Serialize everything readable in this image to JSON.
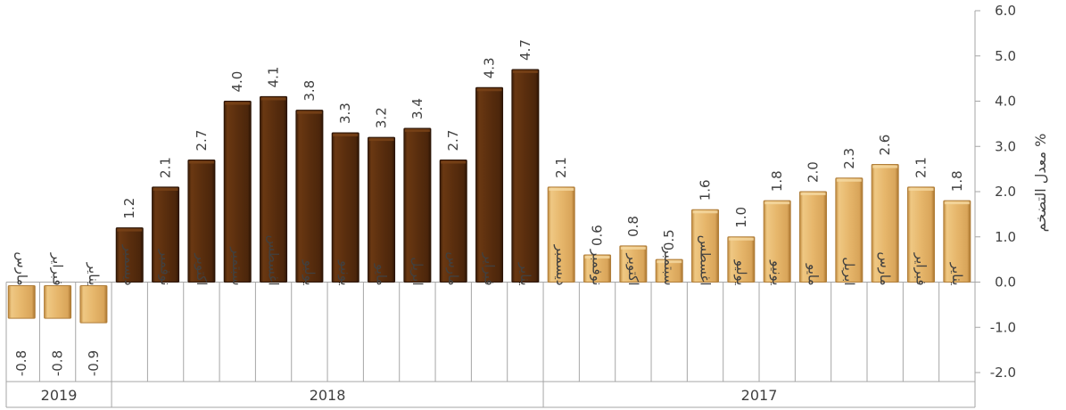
{
  "chart_data": {
    "type": "bar",
    "ylabel": "معدل التضخم %",
    "ylim": [
      -2.0,
      6.0
    ],
    "yticks": [
      "6.0",
      "5.0",
      "4.0",
      "3.0",
      "2.0",
      "1.0",
      "0.0",
      "-1.0",
      "-2.0"
    ],
    "y_axis_side": "right",
    "x_direction": "right-to-left",
    "grid": false,
    "groups": [
      {
        "year": "2017",
        "color": "#E3B46A",
        "categories": [
          "يناير",
          "فبراير",
          "مارس",
          "ابريل",
          "مايو",
          "يونيو",
          "يوليو",
          "اغسطس",
          "سبتمبر",
          "اكتوبر",
          "نوفمبر",
          "ديسمبر"
        ],
        "values": [
          1.8,
          2.1,
          2.6,
          2.3,
          2.0,
          1.8,
          1.0,
          1.6,
          0.5,
          0.8,
          0.6,
          2.1
        ],
        "labels": [
          "1.8",
          "2.1",
          "2.6",
          "2.3",
          "2.0",
          "1.8",
          "1.0",
          "1.6",
          "0.5",
          "0.8",
          "0.6",
          "2.1"
        ]
      },
      {
        "year": "2018",
        "color": "#5A2E0E",
        "categories": [
          "يناير",
          "فبراير",
          "مارس",
          "ابريل",
          "مايو",
          "يونيو",
          "يوليو",
          "اغسطس",
          "سبتمبر",
          "اكتوبر",
          "نوفمبر",
          "ديسمبر"
        ],
        "values": [
          4.7,
          4.3,
          2.7,
          3.4,
          3.2,
          3.3,
          3.8,
          4.1,
          4.0,
          2.7,
          2.1,
          1.2
        ],
        "labels": [
          "4.7",
          "4.3",
          "2.7",
          "3.4",
          "3.2",
          "3.3",
          "3.8",
          "4.1",
          "4.0",
          "2.7",
          "2.1",
          "1.2"
        ]
      },
      {
        "year": "2019",
        "color": "#E3B46A",
        "categories": [
          "يناير",
          "فبراير",
          "مارس"
        ],
        "values": [
          -0.9,
          -0.8,
          -0.8
        ],
        "labels": [
          "-0.9",
          "-0.8",
          "-0.8"
        ]
      }
    ]
  }
}
